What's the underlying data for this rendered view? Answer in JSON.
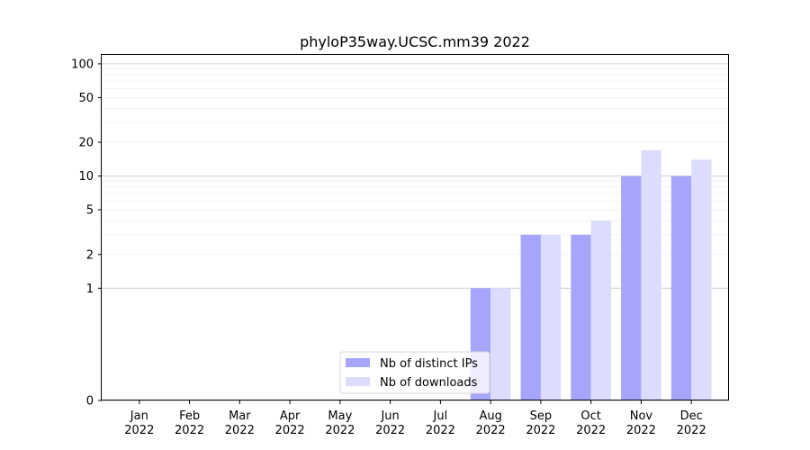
{
  "chart_data": {
    "type": "bar",
    "title": "phyloP35way.UCSC.mm39 2022",
    "xlabel": "",
    "ylabel": "",
    "yscale": "symlog",
    "ylim": [
      0,
      120
    ],
    "yticks": [
      0,
      1,
      2,
      5,
      10,
      20,
      50,
      100
    ],
    "categories": [
      [
        "Jan",
        "2022"
      ],
      [
        "Feb",
        "2022"
      ],
      [
        "Mar",
        "2022"
      ],
      [
        "Apr",
        "2022"
      ],
      [
        "May",
        "2022"
      ],
      [
        "Jun",
        "2022"
      ],
      [
        "Jul",
        "2022"
      ],
      [
        "Aug",
        "2022"
      ],
      [
        "Sep",
        "2022"
      ],
      [
        "Oct",
        "2022"
      ],
      [
        "Nov",
        "2022"
      ],
      [
        "Dec",
        "2022"
      ]
    ],
    "series": [
      {
        "name": "Nb of distinct IPs",
        "color": "#a5a5fb",
        "values": [
          0,
          0,
          0,
          0,
          0,
          0,
          0,
          1,
          3,
          3,
          10,
          10
        ]
      },
      {
        "name": "Nb of downloads",
        "color": "#dcdcfd",
        "values": [
          0,
          0,
          0,
          0,
          0,
          0,
          0,
          1,
          3,
          4,
          17,
          14
        ]
      }
    ],
    "grid": "y-major-and-minor",
    "legend_position": "lower-center"
  }
}
